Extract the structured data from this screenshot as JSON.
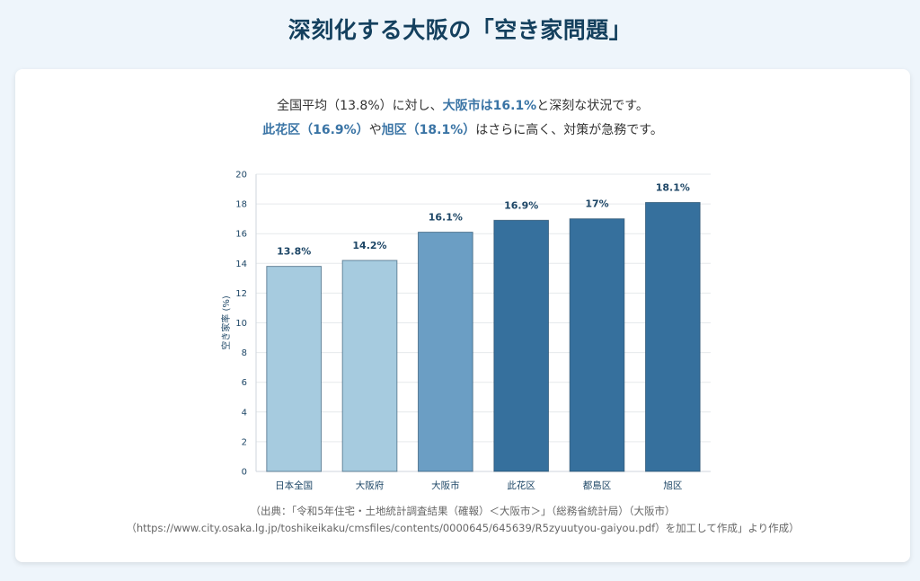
{
  "title": "深刻化する大阪の「空き家問題」",
  "summary": {
    "line1_prefix": "全国平均（13.8%）に対し、",
    "line1_highlight": "大阪市は16.1%",
    "line1_suffix": "と深刻な状況です。",
    "line2_highlight1": "此花区（16.9%）",
    "line2_mid": "や",
    "line2_highlight2": "旭区（18.1%）",
    "line2_suffix": "はさらに高く、対策が急務です。"
  },
  "colors": {
    "title": "#14405e",
    "highlight": "#3a74a5",
    "bar_light": "#a6cbdf",
    "bar_mid": "#6b9ec4",
    "bar_dark": "#36709d",
    "label": "#1d4666"
  },
  "chart_data": {
    "type": "bar",
    "categories": [
      "日本全国",
      "大阪府",
      "大阪市",
      "此花区",
      "都島区",
      "旭区"
    ],
    "values": [
      13.8,
      14.2,
      16.1,
      16.9,
      17,
      18.1
    ],
    "data_labels": [
      "13.8%",
      "14.2%",
      "16.1%",
      "16.9%",
      "17%",
      "18.1%"
    ],
    "bar_colors": [
      "#a6cbdf",
      "#a6cbdf",
      "#6b9ec4",
      "#36709d",
      "#36709d",
      "#36709d"
    ],
    "ylabel": "空き家率 (%)",
    "ylim": [
      0,
      20
    ],
    "yticks": [
      0,
      2,
      4,
      6,
      8,
      10,
      12,
      14,
      16,
      18,
      20
    ],
    "grid": true,
    "legend": "none"
  },
  "source": {
    "line1": "（出典：「令和5年住宅・土地統計調査結果（確報）＜大阪市＞」（総務省統計局）（大阪市）",
    "line2": "（https://www.city.osaka.lg.jp/toshikeikaku/cmsfiles/contents/0000645/645639/R5zyuutyou-gaiyou.pdf）を加工して作成」より作成）"
  }
}
